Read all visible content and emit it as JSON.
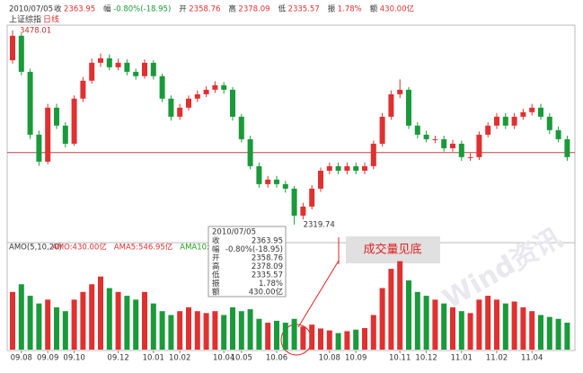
{
  "chart_data": {
    "type": "candlestick",
    "header": [
      {
        "label": "收",
        "value": "2363.95"
      },
      {
        "label": "幅",
        "value": "-0.80%(-18.95)"
      },
      {
        "label": "开",
        "value": "2358.76"
      },
      {
        "label": "高",
        "value": "2378.09"
      },
      {
        "label": "低",
        "value": "2335.57"
      },
      {
        "label": "振",
        "value": "1.78%"
      },
      {
        "label": "额",
        "value": "430.00亿"
      }
    ],
    "date": "2010/07/05",
    "title": "上证综指",
    "period": "日线",
    "volume_title": "AMO(5,10,20)",
    "volume_legend": [
      {
        "text": "AMO:430.00亿",
        "color": "#e03030"
      },
      {
        "text": "AMA5:546.95亿",
        "color": "#e03030"
      },
      {
        "text": "AMA10:549.24亿",
        "color": "#20a020"
      },
      {
        "text": "AMA20:",
        "color": "#3050c0"
      }
    ],
    "annotation": "成交量见底",
    "watermark": "Wind资讯",
    "up_color": "#e03030",
    "down_color": "#1a9a3a",
    "hline": 2749,
    "hline_color": "#c04040",
    "ylim": [
      2260,
      3520
    ],
    "volume_ylim": [
      0,
      2500
    ],
    "categories": [
      null,
      "09.08",
      null,
      null,
      "09.09",
      null,
      null,
      "09.10",
      null,
      null,
      null,
      null,
      "09.12",
      null,
      null,
      null,
      "10.01",
      null,
      null,
      "10.02",
      null,
      null,
      null,
      null,
      "10.04",
      null,
      "10.05",
      null,
      null,
      null,
      "10.06",
      null,
      null,
      null,
      null,
      null,
      "10.08",
      null,
      null,
      "10.09",
      null,
      null,
      null,
      null,
      "10.11",
      null,
      null,
      "10.12",
      null,
      null,
      null,
      "11.01",
      null,
      null,
      null,
      "11.02",
      null,
      null,
      null,
      "11.04",
      null,
      null,
      null,
      null
    ],
    "open": [
      3300,
      3446,
      3231,
      2856,
      2695,
      3017,
      2910,
      2802,
      3071,
      3178,
      3285,
      3312,
      3258,
      3285,
      3231,
      3205,
      3285,
      3205,
      3071,
      2963,
      3017,
      3071,
      3097,
      3124,
      3151,
      3124,
      2963,
      2829,
      2668,
      2561,
      2588,
      2561,
      2534,
      2373,
      2427,
      2534,
      2641,
      2668,
      2641,
      2668,
      2641,
      2668,
      2802,
      2963,
      3097,
      3124,
      2910,
      2856,
      2829,
      2829,
      2775,
      2802,
      2722,
      2722,
      2856,
      2910,
      2963,
      2910,
      2963,
      2990,
      3017,
      2963,
      2883,
      2829
    ],
    "high": [
      3478.01,
      3460,
      3250,
      2880,
      3040,
      3040,
      2930,
      3090,
      3200,
      3310,
      3340,
      3335,
      3310,
      3305,
      3250,
      3305,
      3300,
      3220,
      3090,
      3040,
      3090,
      3120,
      3145,
      3175,
      3170,
      3140,
      2980,
      2850,
      2690,
      2610,
      2610,
      2580,
      2550,
      2450,
      2555,
      2660,
      2690,
      2690,
      2690,
      2690,
      2690,
      2820,
      2985,
      3120,
      3186,
      3140,
      2930,
      2880,
      2850,
      2850,
      2825,
      2820,
      2745,
      2875,
      2930,
      2985,
      2985,
      2985,
      3010,
      3040,
      3040,
      2985,
      2905,
      2850
    ],
    "low": [
      3280,
      3210,
      2830,
      2670,
      2680,
      2890,
      2780,
      2790,
      3050,
      3160,
      3260,
      3240,
      3240,
      3210,
      3185,
      3190,
      3185,
      3050,
      2940,
      2945,
      3000,
      3050,
      3080,
      3105,
      3100,
      2940,
      2810,
      2650,
      2540,
      2540,
      2540,
      2510,
      2319.74,
      2350,
      2410,
      2515,
      2620,
      2620,
      2620,
      2620,
      2620,
      2650,
      2785,
      2945,
      3075,
      2890,
      2835,
      2810,
      2805,
      2755,
      2755,
      2700,
      2700,
      2705,
      2840,
      2890,
      2890,
      2890,
      2945,
      2970,
      2945,
      2860,
      2810,
      2700
    ],
    "close": [
      3446,
      3231,
      2856,
      2695,
      3017,
      2910,
      2802,
      3071,
      3178,
      3285,
      3312,
      3258,
      3285,
      3231,
      3205,
      3285,
      3205,
      3071,
      2963,
      3017,
      3071,
      3097,
      3124,
      3151,
      3124,
      2963,
      2829,
      2668,
      2561,
      2588,
      2561,
      2534,
      2373,
      2427,
      2534,
      2641,
      2668,
      2641,
      2668,
      2641,
      2668,
      2802,
      2963,
      3097,
      3124,
      2910,
      2856,
      2829,
      2829,
      2775,
      2802,
      2722,
      2722,
      2856,
      2910,
      2963,
      2910,
      2963,
      2990,
      3017,
      2963,
      2883,
      2829,
      2722
    ],
    "volume": [
      1500,
      1700,
      1400,
      1200,
      1300,
      1100,
      1000,
      1300,
      1500,
      1700,
      1900,
      1600,
      1500,
      1400,
      1300,
      1500,
      1200,
      1000,
      900,
      1000,
      1100,
      1000,
      950,
      1000,
      900,
      1100,
      1000,
      1050,
      800,
      700,
      750,
      700,
      800,
      600,
      650,
      550,
      500,
      430,
      480,
      520,
      560,
      900,
      1600,
      2100,
      2300,
      1800,
      1500,
      1400,
      1300,
      1200,
      1100,
      1000,
      950,
      1300,
      1400,
      1300,
      1200,
      1250,
      1100,
      1000,
      900,
      850,
      800,
      700
    ]
  }
}
